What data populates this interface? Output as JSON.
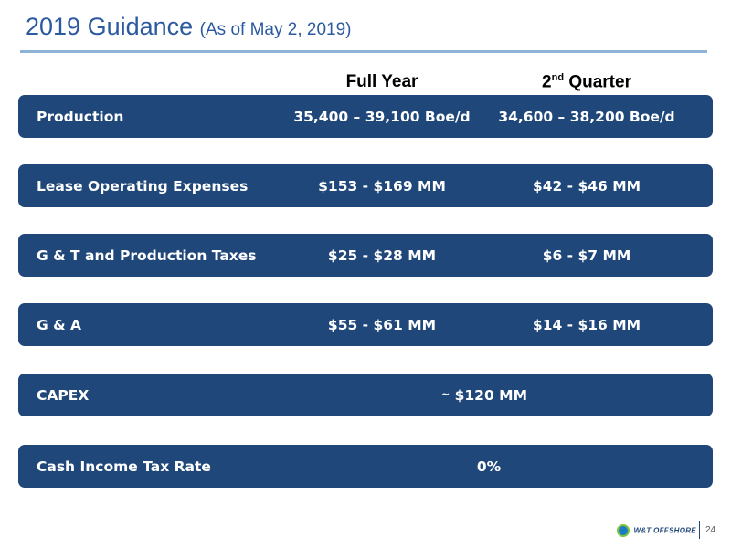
{
  "header": {
    "title": "2019 Guidance",
    "subtitle": "(As of May 2, 2019)"
  },
  "columns": {
    "full_year": "Full Year",
    "quarter_num": "2",
    "quarter_sup": "nd",
    "quarter_word": "Quarter"
  },
  "rows": [
    {
      "label": "Production",
      "full_year": "35,400 – 39,100 Boe/d",
      "quarter": "34,600 – 38,200 Boe/d"
    },
    {
      "label": "Lease Operating Expenses",
      "full_year": "$153 - $169 MM",
      "quarter": "$42 - $46 MM"
    },
    {
      "label": "G & T and Production Taxes",
      "full_year": "$25 - $28 MM",
      "quarter": "$6 - $7 MM"
    },
    {
      "label": "G & A",
      "full_year": "$55 - $61 MM",
      "quarter": "$14 - $16 MM"
    },
    {
      "label": "CAPEX",
      "tilde": "~",
      "combined": "$120  MM"
    },
    {
      "label": "Cash Income Tax Rate",
      "combined": "0%"
    }
  ],
  "footer": {
    "logo_text": "W&T OFFSHORE",
    "page_number": "24"
  },
  "colors": {
    "row_bg": "#1f477a",
    "title": "#2c5aa0",
    "rule": "#8eb3d9"
  }
}
